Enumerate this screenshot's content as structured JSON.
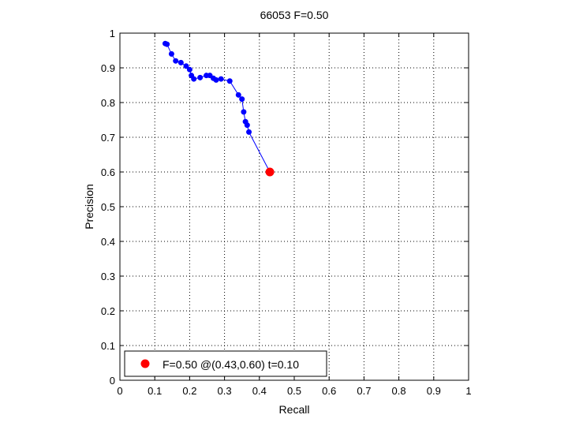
{
  "chart_data": {
    "type": "line",
    "title": "66053 F=0.50",
    "xlabel": "Recall",
    "ylabel": "Precision",
    "xlim": [
      0,
      1
    ],
    "ylim": [
      0,
      1
    ],
    "grid": true,
    "legend_position": "bottom-left",
    "x_ticks": [
      "0",
      "0.1",
      "0.2",
      "0.3",
      "0.4",
      "0.5",
      "0.6",
      "0.7",
      "0.8",
      "0.9",
      "1"
    ],
    "y_ticks": [
      "0",
      "0.1",
      "0.2",
      "0.3",
      "0.4",
      "0.5",
      "0.6",
      "0.7",
      "0.8",
      "0.9",
      "1"
    ],
    "series": [
      {
        "color": "#0000ff",
        "x": [
          0.13,
          0.135,
          0.148,
          0.16,
          0.175,
          0.19,
          0.2,
          0.205,
          0.212,
          0.23,
          0.248,
          0.258,
          0.268,
          0.276,
          0.29,
          0.315,
          0.34,
          0.35,
          0.355,
          0.36,
          0.365,
          0.37
        ],
        "y": [
          0.97,
          0.968,
          0.94,
          0.92,
          0.915,
          0.905,
          0.895,
          0.878,
          0.868,
          0.872,
          0.878,
          0.878,
          0.87,
          0.865,
          0.868,
          0.862,
          0.822,
          0.81,
          0.773,
          0.745,
          0.735,
          0.715
        ]
      }
    ],
    "highlight_point": {
      "color": "#ff0000",
      "x": 0.43,
      "y": 0.6,
      "label": "F=0.50 @(0.43,0.60) t=0.10"
    }
  }
}
